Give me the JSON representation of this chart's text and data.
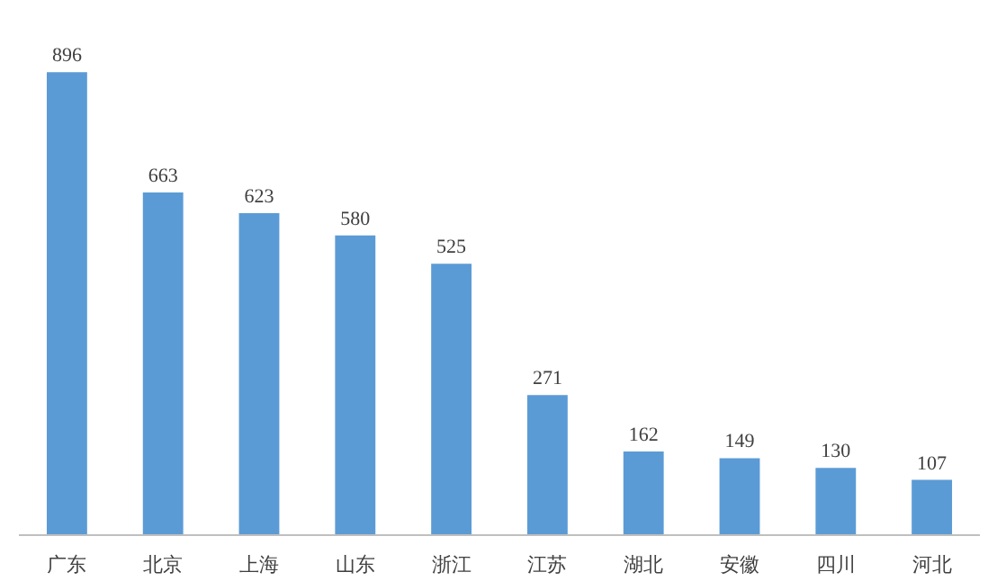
{
  "chart_data": {
    "type": "bar",
    "categories": [
      "广东",
      "北京",
      "上海",
      "山东",
      "浙江",
      "江苏",
      "湖北",
      "安徽",
      "四川",
      "河北"
    ],
    "values": [
      896,
      663,
      623,
      580,
      525,
      271,
      162,
      149,
      130,
      107
    ],
    "color": "#5b9bd5",
    "data_labels": true,
    "grid": false
  }
}
